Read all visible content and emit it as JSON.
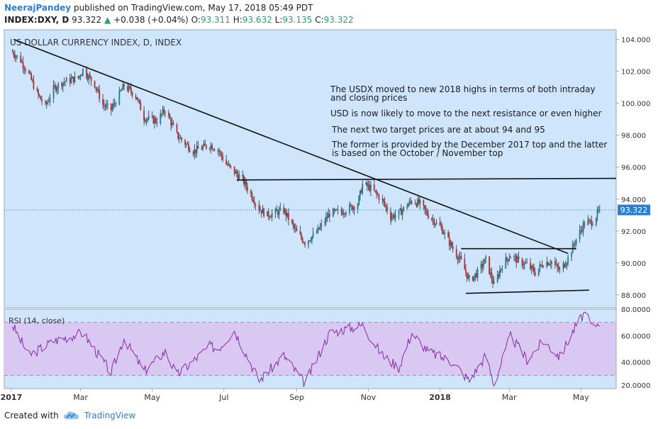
{
  "header": {
    "author": "NeerajPandey",
    "published": "published on TradingView.com, May 17, 2018 05:49 PDT",
    "symbol": "INDEX:DXY, D",
    "last": "93.322",
    "change": "+0.038 (+0.04%)",
    "o_label": "O:",
    "o": "93.311",
    "h_label": "H:",
    "h": "93.632",
    "l_label": "L:",
    "l": "93.135",
    "c_label": "C:",
    "c": "93.322"
  },
  "footer": {
    "created_with": "Created with",
    "brand": "TradingView",
    "logo_icon": "tradingview-cloud-icon"
  },
  "colors": {
    "plot_bg": "#cfe5fc",
    "rsi_band": "#d9c8f2",
    "candle_up": "#1a7f8c",
    "candle_down": "#c62828",
    "rsi_line": "#8a2aa8",
    "price_label_bg": "#2a7fd4"
  },
  "chart_data": [
    {
      "type": "candlestick",
      "title": "US DOLLAR CURRENCY INDEX, D, INDEX",
      "x_ticks": [
        "2017",
        "Mar",
        "May",
        "Jul",
        "Sep",
        "Nov",
        "2018",
        "Mar",
        "May"
      ],
      "y_ticks": [
        "104.000",
        "102.000",
        "100.000",
        "98.000",
        "96.000",
        "94.000",
        "92.000",
        "90.000",
        "88.000"
      ],
      "ylim": [
        87.2,
        104.6
      ],
      "last_price_label": "93.322",
      "close_path": [
        {
          "x": "2017-01-02",
          "y": 103.2
        },
        {
          "x": "2017-01-09",
          "y": 102.7
        },
        {
          "x": "2017-01-16",
          "y": 101.8
        },
        {
          "x": "2017-01-23",
          "y": 100.6
        },
        {
          "x": "2017-01-30",
          "y": 99.8
        },
        {
          "x": "2017-02-06",
          "y": 100.9
        },
        {
          "x": "2017-02-13",
          "y": 101.3
        },
        {
          "x": "2017-02-27",
          "y": 101.6
        },
        {
          "x": "2017-03-03",
          "y": 102.1
        },
        {
          "x": "2017-03-13",
          "y": 101.2
        },
        {
          "x": "2017-03-20",
          "y": 99.9
        },
        {
          "x": "2017-03-27",
          "y": 99.6
        },
        {
          "x": "2017-04-07",
          "y": 101.1
        },
        {
          "x": "2017-04-17",
          "y": 100.5
        },
        {
          "x": "2017-04-24",
          "y": 99.1
        },
        {
          "x": "2017-05-05",
          "y": 98.9
        },
        {
          "x": "2017-05-12",
          "y": 99.6
        },
        {
          "x": "2017-05-22",
          "y": 98.0
        },
        {
          "x": "2017-06-05",
          "y": 97.0
        },
        {
          "x": "2017-06-19",
          "y": 97.4
        },
        {
          "x": "2017-06-26",
          "y": 97.1
        },
        {
          "x": "2017-07-03",
          "y": 96.2
        },
        {
          "x": "2017-07-17",
          "y": 95.2
        },
        {
          "x": "2017-07-31",
          "y": 93.4
        },
        {
          "x": "2017-08-07",
          "y": 93.0
        },
        {
          "x": "2017-08-21",
          "y": 93.3
        },
        {
          "x": "2017-09-01",
          "y": 91.9
        },
        {
          "x": "2017-09-08",
          "y": 91.3
        },
        {
          "x": "2017-09-18",
          "y": 91.9
        },
        {
          "x": "2017-09-29",
          "y": 93.1
        },
        {
          "x": "2017-10-09",
          "y": 93.2
        },
        {
          "x": "2017-10-23",
          "y": 93.7
        },
        {
          "x": "2017-10-27",
          "y": 94.9
        },
        {
          "x": "2017-11-03",
          "y": 94.7
        },
        {
          "x": "2017-11-13",
          "y": 93.9
        },
        {
          "x": "2017-11-20",
          "y": 92.9
        },
        {
          "x": "2017-11-27",
          "y": 93.1
        },
        {
          "x": "2017-12-08",
          "y": 93.9
        },
        {
          "x": "2017-12-15",
          "y": 93.7
        },
        {
          "x": "2017-12-22",
          "y": 93.0
        },
        {
          "x": "2018-01-02",
          "y": 92.2
        },
        {
          "x": "2018-01-12",
          "y": 90.9
        },
        {
          "x": "2018-01-19",
          "y": 90.1
        },
        {
          "x": "2018-01-26",
          "y": 88.9
        },
        {
          "x": "2018-02-02",
          "y": 89.4
        },
        {
          "x": "2018-02-09",
          "y": 90.2
        },
        {
          "x": "2018-02-16",
          "y": 88.6
        },
        {
          "x": "2018-02-23",
          "y": 89.9
        },
        {
          "x": "2018-03-02",
          "y": 90.5
        },
        {
          "x": "2018-03-09",
          "y": 90.1
        },
        {
          "x": "2018-03-16",
          "y": 89.9
        },
        {
          "x": "2018-03-23",
          "y": 89.4
        },
        {
          "x": "2018-03-30",
          "y": 90.0
        },
        {
          "x": "2018-04-06",
          "y": 90.1
        },
        {
          "x": "2018-04-13",
          "y": 89.5
        },
        {
          "x": "2018-04-20",
          "y": 90.3
        },
        {
          "x": "2018-04-27",
          "y": 91.5
        },
        {
          "x": "2018-05-04",
          "y": 92.5
        },
        {
          "x": "2018-05-11",
          "y": 92.6
        },
        {
          "x": "2018-05-17",
          "y": 93.322
        }
      ],
      "trendlines": [
        {
          "name": "downtrend",
          "from": {
            "x": "2017-01-03",
            "y": 104.0
          },
          "to": {
            "x": "2018-04-20",
            "y": 90.6
          }
        },
        {
          "name": "resistance",
          "from": {
            "x": "2017-07-12",
            "y": 95.2
          },
          "to": {
            "x": "2018-05-31",
            "y": 95.3
          }
        },
        {
          "name": "range-top",
          "from": {
            "x": "2018-01-19",
            "y": 90.9
          },
          "to": {
            "x": "2018-04-27",
            "y": 90.9
          }
        },
        {
          "name": "range-bottom",
          "from": {
            "x": "2018-01-23",
            "y": 88.1
          },
          "to": {
            "x": "2018-05-08",
            "y": 88.3
          }
        }
      ],
      "annotations": [
        "The USDX moved to new 2018 highs in terms of both intraday and closing prices",
        "USD is now likely to move to the next resistance or even higher",
        "The next two target prices are at about 94 and 95",
        "The former is provided by the December 2017 top and the latter is based on the October / November top"
      ]
    },
    {
      "type": "line",
      "title": "RSI (14, close)",
      "y_ticks": [
        "80.0000",
        "60.0000",
        "40.0000",
        "20.0000"
      ],
      "ylim": [
        20,
        80
      ],
      "band": [
        30,
        70
      ],
      "series": [
        {
          "points": [
            {
              "x": "2017-01-02",
              "y": 68
            },
            {
              "x": "2017-01-16",
              "y": 45
            },
            {
              "x": "2017-02-06",
              "y": 56
            },
            {
              "x": "2017-03-03",
              "y": 62
            },
            {
              "x": "2017-03-27",
              "y": 32
            },
            {
              "x": "2017-04-07",
              "y": 58
            },
            {
              "x": "2017-04-24",
              "y": 33
            },
            {
              "x": "2017-05-12",
              "y": 48
            },
            {
              "x": "2017-05-22",
              "y": 30
            },
            {
              "x": "2017-06-19",
              "y": 52
            },
            {
              "x": "2017-06-26",
              "y": 50
            },
            {
              "x": "2017-07-10",
              "y": 64
            },
            {
              "x": "2017-07-31",
              "y": 26
            },
            {
              "x": "2017-08-21",
              "y": 45
            },
            {
              "x": "2017-09-08",
              "y": 24
            },
            {
              "x": "2017-09-29",
              "y": 62
            },
            {
              "x": "2017-10-27",
              "y": 68
            },
            {
              "x": "2017-11-13",
              "y": 45
            },
            {
              "x": "2017-11-27",
              "y": 36
            },
            {
              "x": "2017-12-08",
              "y": 62
            },
            {
              "x": "2017-12-22",
              "y": 48
            },
            {
              "x": "2018-01-12",
              "y": 40
            },
            {
              "x": "2018-01-26",
              "y": 26
            },
            {
              "x": "2018-02-09",
              "y": 45
            },
            {
              "x": "2018-02-16",
              "y": 23
            },
            {
              "x": "2018-03-02",
              "y": 60
            },
            {
              "x": "2018-03-16",
              "y": 42
            },
            {
              "x": "2018-03-30",
              "y": 56
            },
            {
              "x": "2018-04-13",
              "y": 44
            },
            {
              "x": "2018-04-27",
              "y": 68
            },
            {
              "x": "2018-05-04",
              "y": 77
            },
            {
              "x": "2018-05-11",
              "y": 66
            },
            {
              "x": "2018-05-17",
              "y": 71
            }
          ]
        }
      ]
    }
  ]
}
